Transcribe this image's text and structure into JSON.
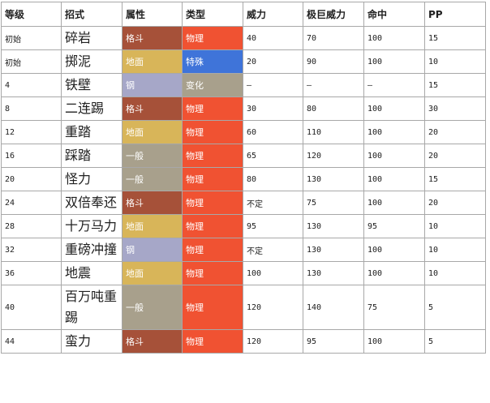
{
  "headers": {
    "level": "等级",
    "move": "招式",
    "type": "属性",
    "category": "类型",
    "power": "威力",
    "max_power": "极巨威力",
    "accuracy": "命中",
    "pp": "PP"
  },
  "rows": [
    {
      "level": "初始",
      "move": "碎岩",
      "type": "格斗",
      "type_color": "#a65139",
      "category": "物理",
      "category_color": "#f05232",
      "power": "40",
      "max_power": "70",
      "accuracy": "100",
      "pp": "15"
    },
    {
      "level": "初始",
      "move": "掷泥",
      "type": "地面",
      "type_color": "#d8b559",
      "category": "特殊",
      "category_color": "#3f74d9",
      "power": "20",
      "max_power": "90",
      "accuracy": "100",
      "pp": "10"
    },
    {
      "level": "4",
      "move": "铁壁",
      "type": "钢",
      "type_color": "#a6a7c8",
      "category": "变化",
      "category_color": "#a8a08c",
      "power": "–",
      "max_power": "–",
      "accuracy": "–",
      "pp": "15"
    },
    {
      "level": "8",
      "move": "二连踢",
      "type": "格斗",
      "type_color": "#a65139",
      "category": "物理",
      "category_color": "#f05232",
      "power": "30",
      "max_power": "80",
      "accuracy": "100",
      "pp": "30"
    },
    {
      "level": "12",
      "move": "重踏",
      "type": "地面",
      "type_color": "#d8b559",
      "category": "物理",
      "category_color": "#f05232",
      "power": "60",
      "max_power": "110",
      "accuracy": "100",
      "pp": "20"
    },
    {
      "level": "16",
      "move": "踩踏",
      "type": "一般",
      "type_color": "#a8a08c",
      "category": "物理",
      "category_color": "#f05232",
      "power": "65",
      "max_power": "120",
      "accuracy": "100",
      "pp": "20"
    },
    {
      "level": "20",
      "move": "怪力",
      "type": "一般",
      "type_color": "#a8a08c",
      "category": "物理",
      "category_color": "#f05232",
      "power": "80",
      "max_power": "130",
      "accuracy": "100",
      "pp": "15"
    },
    {
      "level": "24",
      "move": "双倍奉还",
      "type": "格斗",
      "type_color": "#a65139",
      "category": "物理",
      "category_color": "#f05232",
      "power": "不定",
      "max_power": "75",
      "accuracy": "100",
      "pp": "20"
    },
    {
      "level": "28",
      "move": "十万马力",
      "type": "地面",
      "type_color": "#d8b559",
      "category": "物理",
      "category_color": "#f05232",
      "power": "95",
      "max_power": "130",
      "accuracy": "95",
      "pp": "10"
    },
    {
      "level": "32",
      "move": "重磅冲撞",
      "type": "钢",
      "type_color": "#a6a7c8",
      "category": "物理",
      "category_color": "#f05232",
      "power": "不定",
      "max_power": "130",
      "accuracy": "100",
      "pp": "10"
    },
    {
      "level": "36",
      "move": "地震",
      "type": "地面",
      "type_color": "#d8b559",
      "category": "物理",
      "category_color": "#f05232",
      "power": "100",
      "max_power": "130",
      "accuracy": "100",
      "pp": "10"
    },
    {
      "level": "40",
      "move": "百万吨重踢",
      "type": "一般",
      "type_color": "#a8a08c",
      "category": "物理",
      "category_color": "#f05232",
      "power": "120",
      "max_power": "140",
      "accuracy": "75",
      "pp": "5"
    },
    {
      "level": "44",
      "move": "蛮力",
      "type": "格斗",
      "type_color": "#a65139",
      "category": "物理",
      "category_color": "#f05232",
      "power": "120",
      "max_power": "95",
      "accuracy": "100",
      "pp": "5"
    }
  ]
}
